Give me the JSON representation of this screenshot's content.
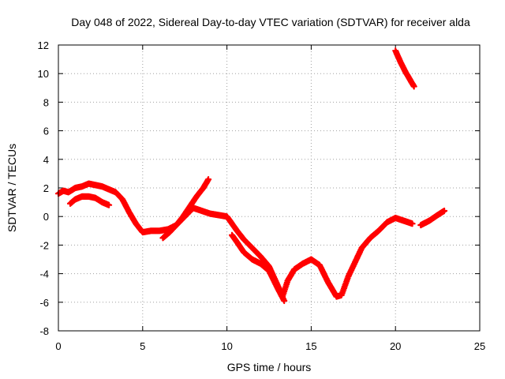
{
  "chart_data": {
    "type": "scatter",
    "title": "Day 048 of 2022, Sidereal Day-to-day VTEC variation (SDTVAR) for receiver alda",
    "xlabel": "GPS time / hours",
    "ylabel": "SDTVAR / TECUs",
    "xlim": [
      0,
      25
    ],
    "ylim": [
      -8,
      12
    ],
    "xticks": [
      0,
      5,
      10,
      15,
      20,
      25
    ],
    "yticks": [
      -8,
      -6,
      -4,
      -2,
      0,
      2,
      4,
      6,
      8,
      10,
      12
    ],
    "xtick_labels": [
      "0",
      "5",
      "10",
      "15",
      "20",
      "25"
    ],
    "ytick_labels": [
      "-8",
      "-6",
      "-4",
      "-2",
      "0",
      "2",
      "4",
      "6",
      "8",
      "10",
      "12"
    ],
    "grid": true,
    "marker": "+",
    "color": "#ff0000",
    "series": [
      {
        "name": "track-main",
        "x": [
          0.0,
          0.3,
          0.6,
          1.0,
          1.4,
          1.8,
          2.2,
          2.6,
          3.0,
          3.4,
          3.8,
          4.2,
          4.6,
          5.0,
          5.5,
          6.0,
          6.5,
          7.0,
          7.5,
          8.0,
          8.5,
          9.0,
          9.5,
          10.0,
          10.3,
          10.6,
          11.0,
          11.5,
          12.0,
          12.5,
          13.0,
          13.3,
          13.6,
          14.0,
          14.5,
          15.0,
          15.5,
          16.0,
          16.5,
          16.8,
          17.2,
          17.6,
          18.0,
          18.5,
          19.0,
          19.5,
          20.0,
          20.5,
          21.0
        ],
        "y": [
          1.6,
          1.8,
          1.7,
          2.0,
          2.1,
          2.3,
          2.2,
          2.1,
          1.9,
          1.7,
          1.2,
          0.3,
          -0.5,
          -1.1,
          -1.0,
          -1.0,
          -0.9,
          -0.6,
          0.0,
          0.6,
          0.4,
          0.2,
          0.1,
          0.0,
          -0.5,
          -1.0,
          -1.6,
          -2.2,
          -2.8,
          -3.5,
          -4.8,
          -5.6,
          -4.5,
          -3.7,
          -3.3,
          -3.0,
          -3.4,
          -4.6,
          -5.6,
          -5.5,
          -4.2,
          -3.2,
          -2.2,
          -1.5,
          -1.0,
          -0.4,
          -0.1,
          -0.3,
          -0.5
        ]
      },
      {
        "name": "track-branch-rising",
        "x": [
          6.2,
          6.6,
          7.0,
          7.4,
          7.8,
          8.2,
          8.6,
          8.9
        ],
        "y": [
          -1.5,
          -1.1,
          -0.6,
          0.0,
          0.7,
          1.4,
          2.0,
          2.6
        ]
      },
      {
        "name": "track-early-low",
        "x": [
          0.7,
          1.0,
          1.4,
          1.8,
          2.2,
          2.6,
          3.0
        ],
        "y": [
          0.9,
          1.2,
          1.4,
          1.4,
          1.3,
          1.0,
          0.8
        ]
      },
      {
        "name": "track-midday-low",
        "x": [
          10.3,
          10.6,
          11.0,
          11.5,
          12.0,
          12.5,
          13.0,
          13.4
        ],
        "y": [
          -1.3,
          -1.8,
          -2.5,
          -3.0,
          -3.3,
          -3.8,
          -5.0,
          -5.9
        ]
      },
      {
        "name": "track-late",
        "x": [
          21.5,
          22.0,
          22.5,
          22.9
        ],
        "y": [
          -0.6,
          -0.3,
          0.1,
          0.4
        ]
      },
      {
        "name": "track-upper",
        "x": [
          20.0,
          20.3,
          20.6,
          20.9,
          21.1
        ],
        "y": [
          11.6,
          10.8,
          10.1,
          9.5,
          9.1
        ]
      }
    ]
  }
}
